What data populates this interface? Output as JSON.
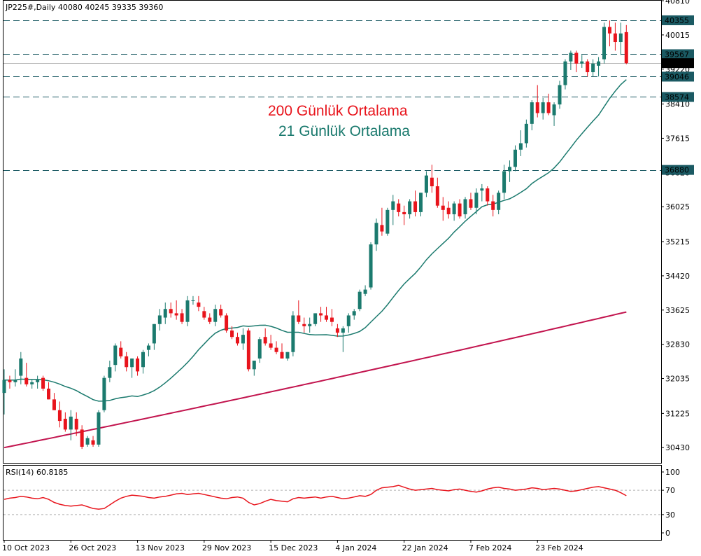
{
  "header": {
    "symbol_line": "JP225#,Daily  40080 40245 39335 39360",
    "rsi_label": "RSI(14) 60.8185"
  },
  "colors": {
    "bull": "#1b7a6e",
    "bear": "#e8141c",
    "ma21": "#1b7a6e",
    "ma200": "#c2144e",
    "rsi": "#e8141c",
    "level_line": "#1b5a63",
    "level_label_bg": "#1b5a63",
    "last_price_bg": "#000000"
  },
  "annotations": {
    "ma200": "200 Günlük Ortalama",
    "ma21": "21 Günlük Ortalama"
  },
  "chart_data": {
    "type": "candlestick",
    "symbol": "JP225#",
    "timeframe": "Daily",
    "last_ohlc": {
      "open": 40080,
      "high": 40245,
      "low": 39335,
      "close": 39360
    },
    "price_axis": {
      "ylim": [
        30076,
        40810
      ],
      "ticks": [
        40810,
        40015,
        39220,
        38410,
        37615,
        36820,
        36025,
        35215,
        34420,
        33625,
        32830,
        32035,
        31225,
        30430
      ],
      "partial_tick": "39220"
    },
    "x_axis": {
      "labels": [
        "10 Oct 2023",
        "26 Oct 2023",
        "13 Nov 2023",
        "29 Nov 2023",
        "15 Dec 2023",
        "4 Jan 2024",
        "22 Jan 2024",
        "7 Feb 2024",
        "23 Feb 2024"
      ],
      "label_bar_index": [
        0,
        12,
        24,
        36,
        48,
        60,
        72,
        84,
        96
      ]
    },
    "levels": [
      {
        "value": 40355,
        "label": "40355"
      },
      {
        "value": 39567,
        "label": "39567"
      },
      {
        "value": 39046,
        "label": "39046"
      },
      {
        "value": 38574,
        "label": "38574"
      },
      {
        "value": 36880,
        "label": "36880"
      }
    ],
    "last_price": {
      "value": 39360,
      "label": "39360"
    },
    "candles": [
      [
        31700,
        32250,
        31200,
        32000
      ],
      [
        32000,
        32100,
        31800,
        31950
      ],
      [
        31950,
        32250,
        31850,
        32000
      ],
      [
        32100,
        32650,
        31900,
        32500
      ],
      [
        32050,
        32400,
        31850,
        31900
      ],
      [
        31900,
        32000,
        31800,
        31950
      ],
      [
        31950,
        32100,
        31800,
        32000
      ],
      [
        32050,
        32100,
        31750,
        31800
      ],
      [
        31800,
        31950,
        31550,
        31550
      ],
      [
        31550,
        31700,
        31300,
        31300
      ],
      [
        31300,
        31500,
        30900,
        31050
      ],
      [
        31100,
        31250,
        30800,
        30850
      ],
      [
        30850,
        31300,
        30600,
        31150
      ],
      [
        31100,
        31250,
        30700,
        30850
      ],
      [
        30850,
        30950,
        30400,
        30450
      ],
      [
        30500,
        30700,
        30450,
        30650
      ],
      [
        30600,
        30700,
        30450,
        30500
      ],
      [
        30500,
        31300,
        30450,
        31250
      ],
      [
        31300,
        32100,
        31250,
        32050
      ],
      [
        32050,
        32450,
        31950,
        32300
      ],
      [
        32350,
        32850,
        32200,
        32800
      ],
      [
        32750,
        32900,
        32500,
        32550
      ],
      [
        32550,
        32650,
        32200,
        32300
      ],
      [
        32300,
        32500,
        32050,
        32500
      ],
      [
        32500,
        32550,
        32100,
        32200
      ],
      [
        32300,
        32700,
        32150,
        32650
      ],
      [
        32700,
        32850,
        32550,
        32800
      ],
      [
        32850,
        33300,
        32700,
        33300
      ],
      [
        33300,
        33650,
        33150,
        33500
      ],
      [
        33450,
        33800,
        33300,
        33650
      ],
      [
        33650,
        33800,
        33450,
        33550
      ],
      [
        33550,
        33850,
        33400,
        33500
      ],
      [
        33550,
        33650,
        33300,
        33350
      ],
      [
        33350,
        33950,
        33250,
        33850
      ],
      [
        33850,
        33950,
        33750,
        33850
      ],
      [
        33800,
        33950,
        33600,
        33700
      ],
      [
        33600,
        33700,
        33400,
        33450
      ],
      [
        33450,
        33550,
        33300,
        33350
      ],
      [
        33350,
        33750,
        33250,
        33650
      ],
      [
        33650,
        33750,
        33450,
        33500
      ],
      [
        33500,
        33550,
        33100,
        33150
      ],
      [
        33150,
        33250,
        32950,
        33000
      ],
      [
        33000,
        33100,
        32800,
        32850
      ],
      [
        32850,
        33200,
        32700,
        33050
      ],
      [
        33150,
        33200,
        32200,
        32250
      ],
      [
        32250,
        32450,
        32100,
        32450
      ],
      [
        32500,
        33000,
        32400,
        32950
      ],
      [
        33000,
        33200,
        32800,
        32850
      ],
      [
        32850,
        33050,
        32700,
        32750
      ],
      [
        32750,
        32900,
        32600,
        32650
      ],
      [
        32650,
        32850,
        32500,
        32500
      ],
      [
        32500,
        32650,
        32450,
        32650
      ],
      [
        32650,
        33600,
        32550,
        33500
      ],
      [
        33500,
        33850,
        33300,
        33350
      ],
      [
        33300,
        33450,
        33100,
        33250
      ],
      [
        33250,
        33450,
        33100,
        33300
      ],
      [
        33300,
        33550,
        33250,
        33550
      ],
      [
        33550,
        33700,
        33350,
        33500
      ],
      [
        33500,
        33700,
        33350,
        33400
      ],
      [
        33450,
        33650,
        33250,
        33350
      ],
      [
        33200,
        33300,
        33000,
        33100
      ],
      [
        33100,
        33250,
        32650,
        33200
      ],
      [
        33250,
        33550,
        33100,
        33500
      ],
      [
        33500,
        33650,
        33400,
        33600
      ],
      [
        33650,
        34100,
        33600,
        34050
      ],
      [
        34000,
        34200,
        33950,
        34100
      ],
      [
        34150,
        35200,
        34100,
        35150
      ],
      [
        35150,
        35750,
        35000,
        35650
      ],
      [
        35600,
        36000,
        35350,
        35450
      ],
      [
        35400,
        36000,
        35350,
        35950
      ],
      [
        35950,
        36300,
        35600,
        36150
      ],
      [
        36100,
        36200,
        35800,
        35900
      ],
      [
        35900,
        36050,
        35600,
        35850
      ],
      [
        35850,
        36200,
        35750,
        36150
      ],
      [
        36150,
        36400,
        35800,
        35900
      ],
      [
        35900,
        36350,
        35800,
        36350
      ],
      [
        36350,
        36850,
        36250,
        36750
      ],
      [
        36700,
        37000,
        36350,
        36500
      ],
      [
        36500,
        36700,
        36000,
        36050
      ],
      [
        36050,
        36250,
        35700,
        35950
      ],
      [
        36000,
        36150,
        35750,
        35850
      ],
      [
        35850,
        36150,
        35700,
        36100
      ],
      [
        36100,
        36200,
        35750,
        35800
      ],
      [
        35850,
        36250,
        35750,
        36200
      ],
      [
        36200,
        36350,
        35950,
        36000
      ],
      [
        36000,
        36450,
        35850,
        36350
      ],
      [
        36400,
        36550,
        36150,
        36450
      ],
      [
        36450,
        36500,
        36050,
        36150
      ],
      [
        36150,
        36300,
        35800,
        35950
      ],
      [
        35950,
        36400,
        35850,
        36350
      ],
      [
        36350,
        37000,
        36200,
        36850
      ],
      [
        36850,
        37100,
        36600,
        36950
      ],
      [
        36950,
        37450,
        36850,
        37350
      ],
      [
        37350,
        37800,
        37200,
        37500
      ],
      [
        37500,
        38050,
        37400,
        37950
      ],
      [
        37950,
        38500,
        37800,
        38450
      ],
      [
        38450,
        38850,
        38100,
        38200
      ],
      [
        38200,
        38550,
        38050,
        38450
      ],
      [
        38450,
        38650,
        38150,
        38200
      ],
      [
        38150,
        38450,
        37900,
        38400
      ],
      [
        38400,
        38950,
        38300,
        38850
      ],
      [
        38850,
        39450,
        38750,
        39400
      ],
      [
        39400,
        39650,
        39200,
        39600
      ],
      [
        39600,
        39650,
        39150,
        39350
      ],
      [
        39350,
        39550,
        39250,
        39400
      ],
      [
        39400,
        39450,
        39050,
        39150
      ],
      [
        39150,
        39450,
        39050,
        39350
      ],
      [
        39300,
        39500,
        39050,
        39400
      ],
      [
        39450,
        40300,
        39350,
        40200
      ],
      [
        40200,
        40350,
        39750,
        40050
      ],
      [
        40050,
        40300,
        39650,
        39850
      ],
      [
        39850,
        40300,
        39550,
        40050
      ],
      [
        40080,
        40245,
        39335,
        39360
      ]
    ],
    "ma21": [
      31900,
      31700,
      31550,
      31350,
      31250,
      31150,
      31050,
      31000,
      30950,
      30900,
      30900,
      30950,
      31050,
      31150,
      31300,
      31450,
      31600,
      31800,
      32000,
      32200,
      32400,
      32600,
      32800,
      33000,
      33150,
      33250,
      33300,
      33350,
      33350,
      33300,
      33250,
      33200,
      33150,
      33100,
      33050,
      33000,
      32950,
      32950,
      33000,
      33100,
      33250,
      33450,
      33650,
      33900,
      34150,
      34400,
      34600,
      34800,
      35000,
      35150,
      35300,
      35450,
      35650,
      35850,
      36000,
      36150,
      36300,
      36450,
      36600,
      36750,
      36900,
      37050,
      37200,
      37350,
      37500,
      37700,
      37900,
      38100,
      38300,
      38500,
      38700,
      38850
    ],
    "ma21_start_index": 0,
    "ma200": {
      "start": 30430,
      "end": 33580
    },
    "rsi": {
      "label": "RSI(14)",
      "value": 60.8185,
      "ticks": [
        100,
        70,
        30,
        0
      ],
      "levels": [
        70,
        30
      ],
      "values": [
        55,
        57,
        58,
        60,
        59,
        57,
        56,
        58,
        55,
        50,
        47,
        45,
        44,
        45,
        46,
        43,
        40,
        39,
        40,
        46,
        52,
        57,
        60,
        62,
        61,
        60,
        58,
        57,
        59,
        60,
        62,
        64,
        65,
        63,
        64,
        65,
        63,
        61,
        59,
        57,
        56,
        58,
        59,
        57,
        50,
        46,
        48,
        52,
        55,
        53,
        52,
        51,
        56,
        58,
        57,
        58,
        59,
        57,
        59,
        60,
        58,
        56,
        57,
        59,
        61,
        60,
        63,
        70,
        74,
        75,
        76,
        78,
        75,
        72,
        70,
        71,
        72,
        73,
        71,
        70,
        69,
        71,
        72,
        70,
        68,
        67,
        69,
        72,
        74,
        75,
        73,
        72,
        70,
        71,
        72,
        74,
        73,
        71,
        72,
        73,
        72,
        70,
        68,
        69,
        71,
        73,
        75,
        76,
        74,
        72,
        70,
        66,
        61
      ]
    }
  }
}
